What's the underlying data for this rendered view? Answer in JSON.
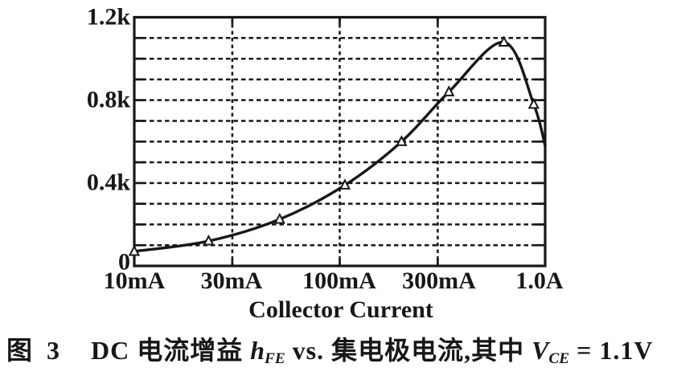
{
  "page": {
    "background": "#ffffff",
    "ink": "#171717"
  },
  "chart_data": {
    "type": "line",
    "title": "",
    "xlabel": "Collector Current",
    "ylabel": "",
    "x_scale": "log",
    "xlim_mA": [
      10,
      1000
    ],
    "x_ticks": [
      {
        "mA": 10,
        "label": "10mA"
      },
      {
        "mA": 30,
        "label": "30mA"
      },
      {
        "mA": 100,
        "label": "100mA"
      },
      {
        "mA": 300,
        "label": "300mA"
      },
      {
        "mA": 1000,
        "label": "1.0A"
      }
    ],
    "x_gridlines_mA": [
      30,
      100,
      300
    ],
    "ylim": [
      0,
      1200
    ],
    "y_grid_step": 100,
    "y_ticks": [
      {
        "value": 1200,
        "label": "1.2k"
      },
      {
        "value": 800,
        "label": "0.8k"
      },
      {
        "value": 400,
        "label": "0.4k"
      },
      {
        "value": 0,
        "label": "0"
      }
    ],
    "grid_style": "dashed",
    "legend": "none",
    "series": [
      {
        "name": "DC current gain hFE",
        "marker": "open-triangle",
        "points": [
          {
            "x_mA": 10,
            "y": 70
          },
          {
            "x_mA": 23,
            "y": 120
          },
          {
            "x_mA": 51,
            "y": 225
          },
          {
            "x_mA": 106,
            "y": 390
          },
          {
            "x_mA": 200,
            "y": 600
          },
          {
            "x_mA": 340,
            "y": 840
          },
          {
            "x_mA": 630,
            "y": 1080
          },
          {
            "x_mA": 880,
            "y": 780
          }
        ],
        "curve_end": {
          "x_mA": 1000,
          "y": 580
        }
      }
    ]
  },
  "caption": {
    "figure_label": "图 3",
    "prefix": "DC 电流增益 ",
    "gain_symbol_base": "h",
    "gain_symbol_sub": "FE",
    "middle": " vs. 集电极电流,其中 ",
    "condition_base": "V",
    "condition_sub": "CE",
    "suffix": " = 1.1V"
  }
}
